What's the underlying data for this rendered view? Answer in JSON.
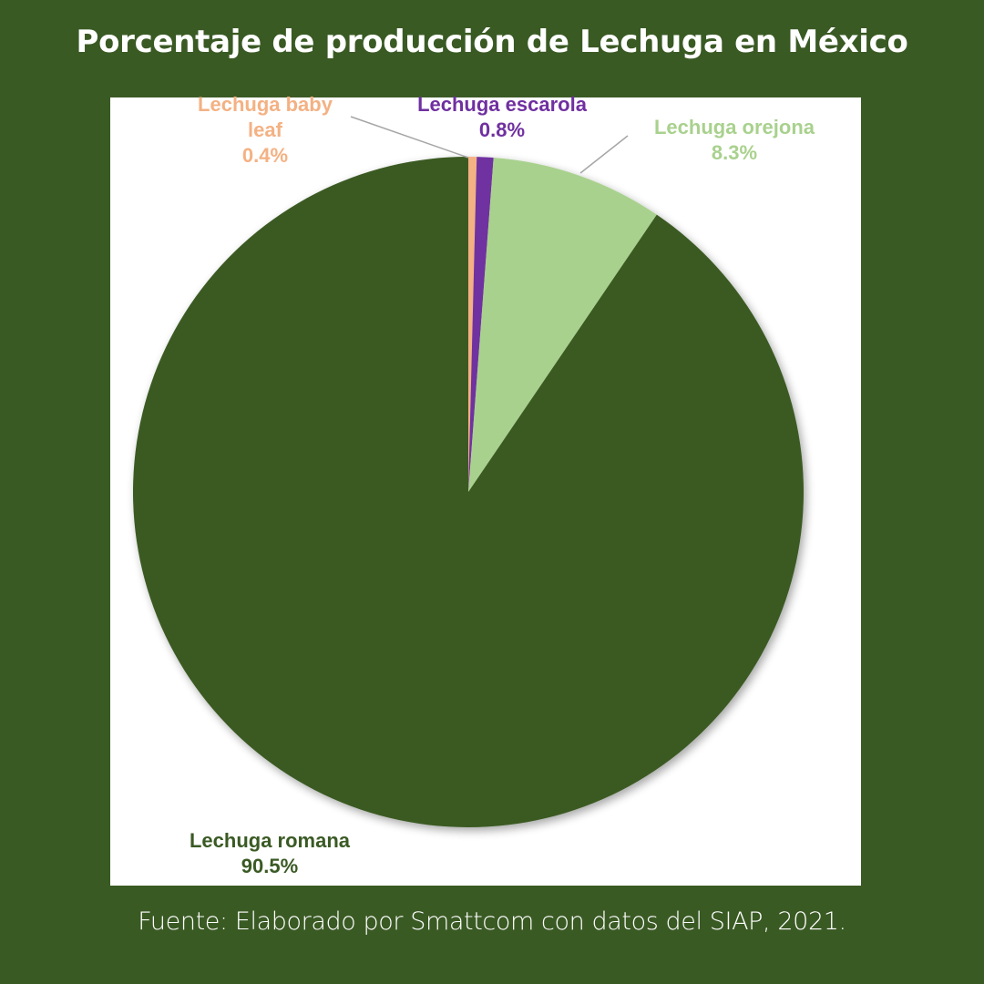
{
  "title": "Porcentaje de producción de Lechuga en México",
  "source": "Fuente: Elaborado por Smattcom con datos del SIAP, 2021.",
  "colors": {
    "background": "#3a5a24",
    "panel": "#ffffff"
  },
  "labels": {
    "baby_leaf": {
      "name_line1": "Lechuga baby",
      "name_line2": "leaf",
      "value": "0.4%"
    },
    "escarola": {
      "name": "Lechuga escarola",
      "value": "0.8%"
    },
    "orejona": {
      "name": "Lechuga orejona",
      "value": "8.3%"
    },
    "romana": {
      "name": "Lechuga romana",
      "value": "90.5%"
    }
  },
  "chart_data": {
    "type": "pie",
    "title": "Porcentaje de producción de Lechuga en México",
    "categories": [
      "Lechuga baby leaf",
      "Lechuga escarola",
      "Lechuga orejona",
      "Lechuga romana"
    ],
    "values": [
      0.4,
      0.8,
      8.3,
      90.5
    ],
    "unit": "%",
    "colors": [
      "#f4b183",
      "#7030a0",
      "#a9d18e",
      "#3a5a24"
    ],
    "start_angle": "12 o'clock",
    "direction": "clockwise",
    "data_labels": [
      "Lechuga baby leaf 0.4%",
      "Lechuga escarola 0.8%",
      "Lechuga orejona 8.3%",
      "Lechuga romana 90.5%"
    ],
    "legend": "none (data labels)",
    "source": "Fuente: Elaborado por Smattcom con datos del SIAP, 2021."
  }
}
